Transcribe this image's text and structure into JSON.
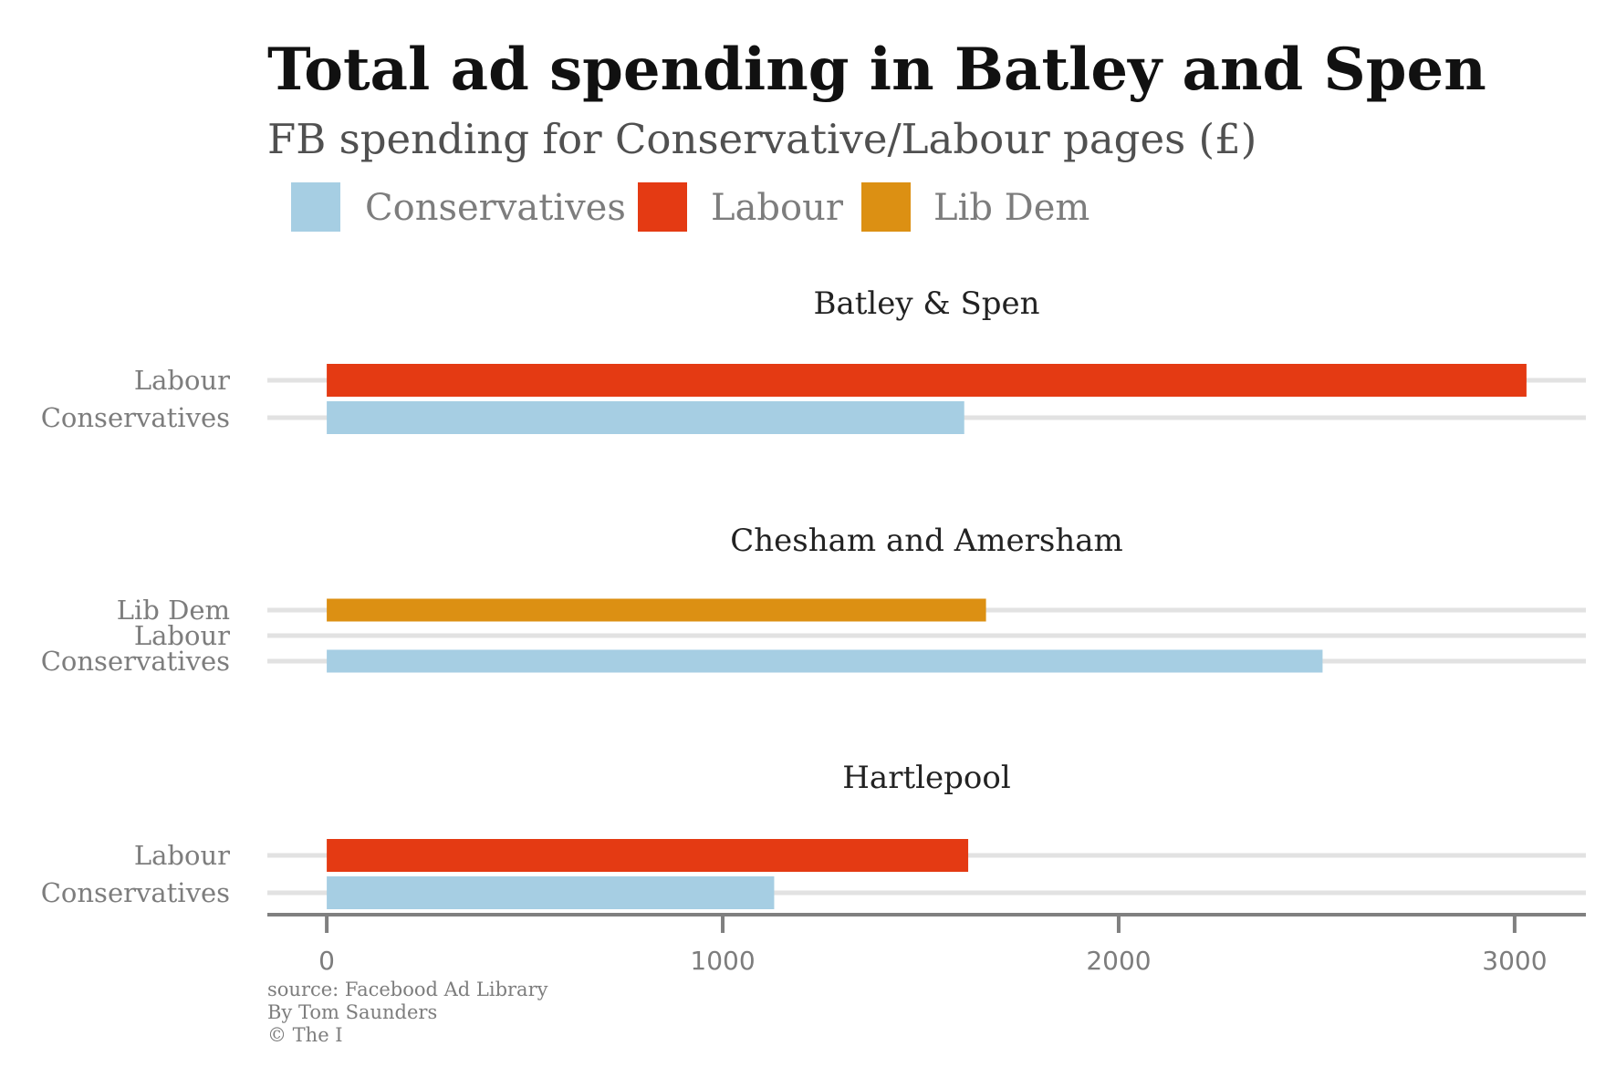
{
  "chart_data": {
    "type": "bar",
    "orientation": "horizontal",
    "title": "Total ad spending in Batley and Spen",
    "subtitle": "FB spending for Conservative/Labour pages (£)",
    "legend": {
      "placement": "top-left",
      "entries": [
        {
          "name": "Conservatives",
          "color": "#a6cee3"
        },
        {
          "name": "Labour",
          "color": "#e43a13"
        },
        {
          "name": "Lib Dem",
          "color": "#dc9013"
        }
      ]
    },
    "xlim": [
      -150,
      3180
    ],
    "x_ticks": [
      0,
      1000,
      2000,
      3000
    ],
    "x_tick_labels": [
      "0",
      "1000",
      "2000",
      "3000"
    ],
    "grid": true,
    "facets": [
      {
        "title": "Batley & Spen",
        "categories": [
          "Labour",
          "Conservatives"
        ],
        "values": [
          3030,
          1610
        ],
        "colors": [
          "#e43a13",
          "#a6cee3"
        ]
      },
      {
        "title": "Chesham and Amersham",
        "categories": [
          "Lib Dem",
          "Labour",
          "Conservatives"
        ],
        "values": [
          1665,
          0,
          2515
        ],
        "colors": [
          "#dc9013",
          "#e43a13",
          "#a6cee3"
        ]
      },
      {
        "title": "Hartlepool",
        "categories": [
          "Labour",
          "Conservatives"
        ],
        "values": [
          1620,
          1130
        ],
        "colors": [
          "#e43a13",
          "#a6cee3"
        ]
      }
    ],
    "caption": [
      "source: Facebood Ad Library",
      "By Tom Saunders",
      "© The I"
    ]
  }
}
